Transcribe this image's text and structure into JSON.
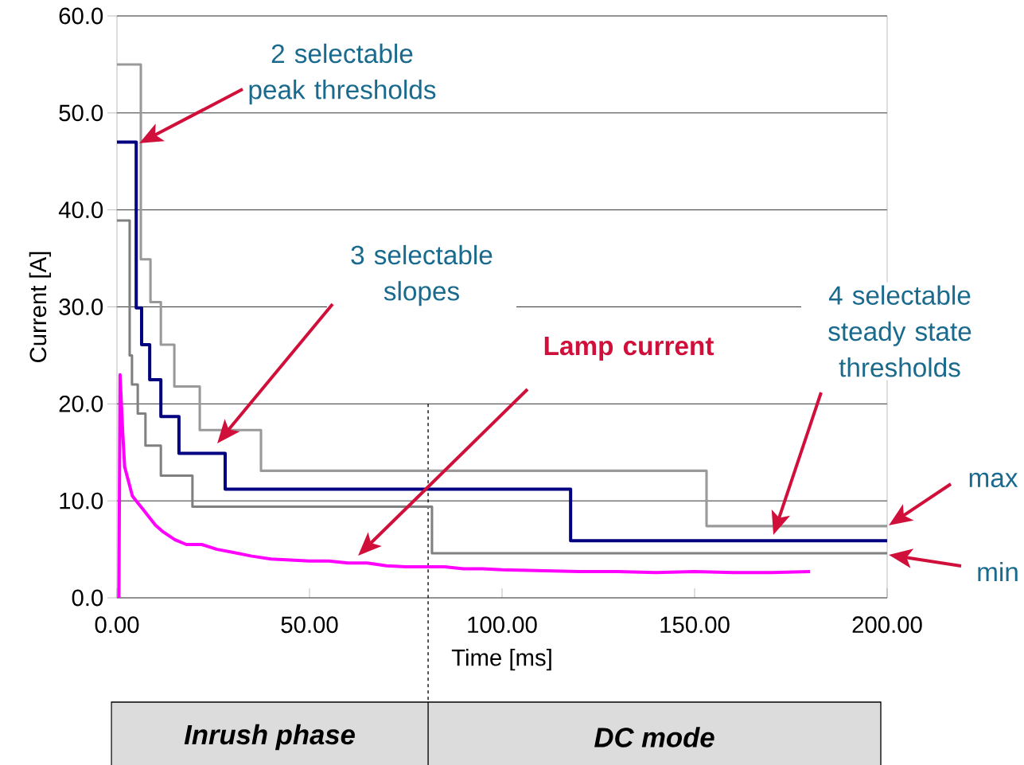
{
  "chart_data": {
    "type": "step",
    "xlabel": "Time [ms]",
    "ylabel": "Current [A]",
    "xlim": [
      0,
      200
    ],
    "ylim": [
      0,
      60
    ],
    "xticks": [
      {
        "value": 0,
        "label": "0.00"
      },
      {
        "value": 50,
        "label": "50.00"
      },
      {
        "value": 100,
        "label": "100.00"
      },
      {
        "value": 150,
        "label": "150.00"
      },
      {
        "value": 200,
        "label": "200.00"
      }
    ],
    "yticks": [
      {
        "value": 0,
        "label": "0.0"
      },
      {
        "value": 10,
        "label": "10.0"
      },
      {
        "value": 20,
        "label": "20.0"
      },
      {
        "value": 30,
        "label": "30.0"
      },
      {
        "value": 40,
        "label": "40.0"
      },
      {
        "value": 50,
        "label": "50.0"
      },
      {
        "value": 60,
        "label": "60.0"
      }
    ],
    "grid": "y",
    "series": [
      {
        "color": "#999999",
        "x": [
          0,
          6.2,
          8.7,
          11.4,
          14.9,
          21.5,
          37.4,
          153.1,
          200
        ],
        "values": [
          55,
          34.9,
          30.5,
          26.1,
          21.8,
          17.3,
          13.1,
          7.4,
          7.4
        ]
      },
      {
        "color": "#808080",
        "x": [
          0,
          3.3,
          3.9,
          5.4,
          7.4,
          11.4,
          19.6,
          81.8,
          200
        ],
        "values": [
          38.9,
          25.0,
          22.0,
          19.0,
          15.7,
          12.6,
          9.4,
          4.6,
          4.6
        ]
      },
      {
        "color": "#000080",
        "x": [
          0,
          5.0,
          6.4,
          8.5,
          11.4,
          16.1,
          28.1,
          117.8,
          200
        ],
        "values": [
          47.0,
          29.9,
          26.1,
          22.5,
          18.7,
          14.9,
          11.2,
          5.9,
          5.9
        ]
      },
      {
        "type": "line",
        "color": "#ff00ff",
        "x": [
          0.5,
          0.8,
          1.5,
          2,
          3,
          4,
          5,
          7,
          8,
          10,
          12,
          15,
          18,
          22,
          26,
          30,
          35,
          40,
          45,
          50,
          55,
          60,
          65,
          70,
          75,
          80,
          85,
          90,
          95,
          100,
          110,
          120,
          130,
          140,
          150,
          160,
          170,
          180
        ],
        "values": [
          0,
          23,
          17,
          13.5,
          12,
          10.5,
          10,
          9,
          8.5,
          7.5,
          6.8,
          6,
          5.5,
          5.5,
          5,
          4.7,
          4.3,
          4,
          3.9,
          3.8,
          3.8,
          3.6,
          3.6,
          3.3,
          3.2,
          3.2,
          3.2,
          3.0,
          3.0,
          2.9,
          2.8,
          2.7,
          2.7,
          2.6,
          2.7,
          2.6,
          2.6,
          2.7
        ]
      }
    ],
    "ref_lines": [
      {
        "axis": "x",
        "value": 80.8,
        "line_style": "dashed"
      }
    ],
    "annotations": [
      "2 selectable peak thresholds",
      "3 selectable slopes",
      "Lamp current",
      "4 selectable steady state thresholds",
      "max",
      "min",
      "Inrush phase",
      "DC mode"
    ]
  }
}
